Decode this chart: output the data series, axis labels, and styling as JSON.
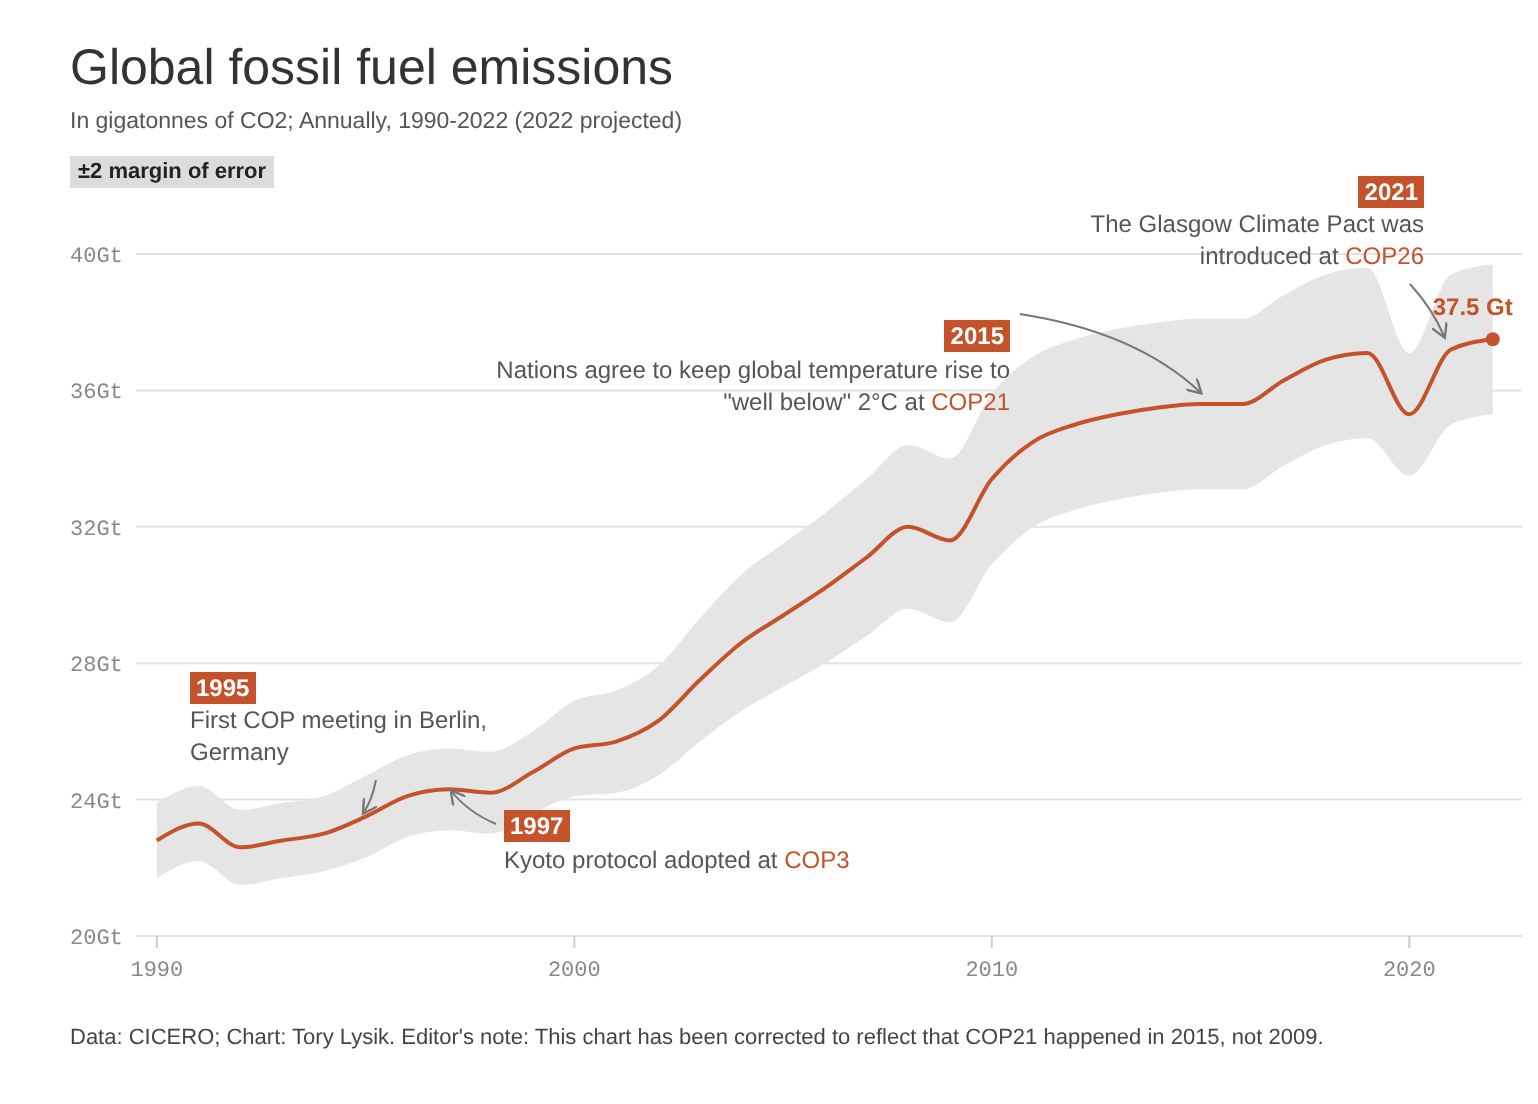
{
  "chart_data": {
    "type": "line",
    "title": "Global fossil fuel emissions",
    "subtitle": "In gigatonnes of CO2; Annually, 1990-2022 (2022 projected)",
    "x": [
      1990,
      1991,
      1992,
      1993,
      1994,
      1995,
      1996,
      1997,
      1998,
      1999,
      2000,
      2001,
      2002,
      2003,
      2004,
      2005,
      2006,
      2007,
      2008,
      2009,
      2010,
      2011,
      2012,
      2013,
      2014,
      2015,
      2016,
      2017,
      2018,
      2019,
      2020,
      2021,
      2022
    ],
    "series": [
      {
        "color": "#c4522a",
        "values": [
          22.8,
          23.3,
          22.6,
          22.8,
          23.0,
          23.5,
          24.1,
          24.3,
          24.2,
          24.8,
          25.5,
          25.7,
          26.3,
          27.5,
          28.6,
          29.4,
          30.2,
          31.1,
          32.0,
          31.6,
          33.4,
          34.5,
          35.0,
          35.3,
          35.5,
          35.6,
          35.6,
          36.3,
          36.9,
          37.1,
          35.3,
          37.2,
          37.5
        ],
        "lower": [
          21.7,
          22.2,
          21.5,
          21.7,
          21.9,
          22.3,
          22.9,
          23.1,
          23.0,
          23.6,
          24.1,
          24.2,
          24.7,
          25.7,
          26.6,
          27.3,
          28.0,
          28.8,
          29.6,
          29.2,
          30.9,
          32.0,
          32.5,
          32.8,
          33.0,
          33.1,
          33.1,
          33.8,
          34.4,
          34.6,
          33.5,
          35.0,
          35.3
        ],
        "upper": [
          23.9,
          24.4,
          23.7,
          23.9,
          24.1,
          24.7,
          25.3,
          25.5,
          25.4,
          26.0,
          26.9,
          27.2,
          27.9,
          29.3,
          30.6,
          31.5,
          32.4,
          33.4,
          34.4,
          34.0,
          35.9,
          37.0,
          37.5,
          37.8,
          38.0,
          38.1,
          38.1,
          38.8,
          39.4,
          39.6,
          37.1,
          39.4,
          39.7
        ],
        "value_labels": [
          null,
          null,
          null,
          null,
          null,
          null,
          null,
          null,
          null,
          null,
          null,
          null,
          null,
          null,
          null,
          null,
          null,
          null,
          null,
          null,
          null,
          null,
          null,
          null,
          null,
          null,
          null,
          null,
          null,
          null,
          null,
          null,
          "37.5 Gt"
        ]
      }
    ],
    "xlim": [
      1989.5,
      2022.7
    ],
    "xticks": [
      1990,
      2000,
      2010,
      2020
    ],
    "ylim": [
      20,
      40
    ],
    "yticks": [
      {
        "value": 20,
        "label": "20Gt"
      },
      {
        "value": 24,
        "label": "24Gt"
      },
      {
        "value": 28,
        "label": "28Gt"
      },
      {
        "value": 32,
        "label": "32Gt"
      },
      {
        "value": 36,
        "label": "36Gt"
      },
      {
        "value": 40,
        "label": "40Gt"
      }
    ],
    "grid": "y",
    "annotations": [
      "1995",
      "First COP meeting in Berlin, Germany",
      "1997",
      "Kyoto protocol adopted at COP3",
      "2015",
      "Nations agree to keep global temperature rise to \"well below\" 2°C at COP21",
      "2021",
      "The Glasgow Climate Pact was introduced at COP26",
      "±2 margin of error",
      "Data: CICERO; Chart: Tory Lysik. Editor's note: This chart has been corrected to reflect that COP21 happened in 2015, not 2009."
    ]
  }
}
